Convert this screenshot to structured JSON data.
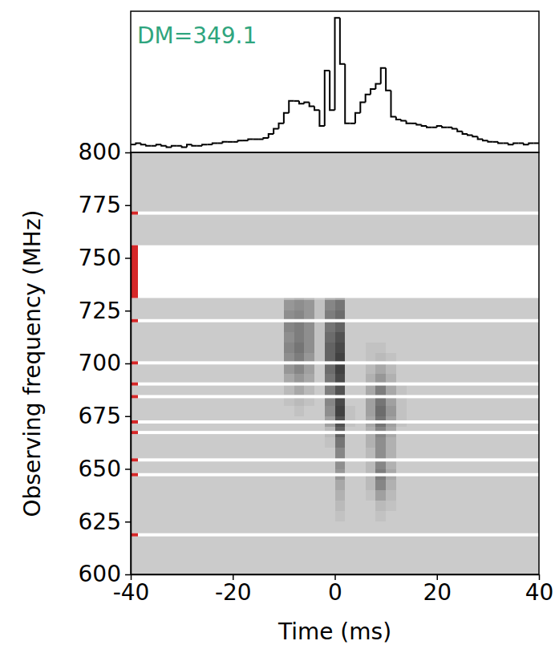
{
  "chart_data": {
    "type": "heatmap",
    "annotation": "DM=349.1",
    "x_label": "Time (ms)",
    "y_label": "Observing frequency (MHz)",
    "xlim": [
      -40,
      40
    ],
    "xticks": [
      -40,
      -20,
      0,
      20,
      40
    ],
    "ylim": [
      600,
      800
    ],
    "yticks": [
      600,
      625,
      650,
      675,
      700,
      725,
      750,
      775,
      800
    ],
    "cells": {
      "x_edges": [
        -12,
        -10,
        -8,
        -6,
        -4,
        -2,
        0,
        2,
        4,
        6,
        8,
        10,
        12,
        14
      ],
      "y_edges": [
        625,
        630,
        635,
        640,
        645,
        650,
        655,
        660,
        665,
        670,
        675,
        680,
        685,
        690,
        695,
        700,
        705,
        710,
        715,
        720,
        725,
        730,
        735
      ],
      "values": [
        [
          0,
          0,
          0,
          0,
          0,
          0,
          0.05,
          0,
          0,
          0,
          0.05,
          0,
          0
        ],
        [
          0,
          0,
          0,
          0,
          0,
          0,
          0.1,
          0,
          0,
          0,
          0.1,
          0.05,
          0
        ],
        [
          0,
          0,
          0,
          0,
          0,
          0,
          0.15,
          0,
          0,
          0.05,
          0.25,
          0.1,
          0
        ],
        [
          0,
          0,
          0,
          0,
          0,
          0,
          0.2,
          0,
          0,
          0.1,
          0.4,
          0.15,
          0
        ],
        [
          0,
          0,
          0,
          0,
          0,
          0,
          0.3,
          0,
          0,
          0.1,
          0.45,
          0.2,
          0
        ],
        [
          0,
          0,
          0,
          0,
          0,
          0,
          0.35,
          0,
          0,
          0.1,
          0.4,
          0.15,
          0
        ],
        [
          0,
          0,
          0,
          0,
          0,
          0,
          0.4,
          0,
          0,
          0.1,
          0.35,
          0.15,
          0
        ],
        [
          0,
          0,
          0,
          0,
          0,
          0.05,
          0.5,
          0,
          0,
          0.15,
          0.35,
          0.15,
          0
        ],
        [
          0,
          0,
          0,
          0,
          0,
          0.1,
          0.6,
          0,
          0,
          0.15,
          0.4,
          0.2,
          0
        ],
        [
          0,
          0,
          0,
          0,
          0,
          0.25,
          0.7,
          0.05,
          0,
          0.2,
          0.5,
          0.25,
          0.05
        ],
        [
          0,
          0,
          0.05,
          0,
          0,
          0.35,
          0.8,
          0.05,
          0,
          0.25,
          0.55,
          0.3,
          0.05
        ],
        [
          0,
          0.05,
          0.1,
          0.05,
          0,
          0.4,
          0.75,
          0,
          0,
          0.25,
          0.5,
          0.25,
          0.05
        ],
        [
          0,
          0.1,
          0.2,
          0.1,
          0,
          0.45,
          0.7,
          0,
          0,
          0.2,
          0.45,
          0.2,
          0.05
        ],
        [
          0,
          0.2,
          0.3,
          0.2,
          0,
          0.5,
          0.75,
          0,
          0,
          0.15,
          0.3,
          0.15,
          0
        ],
        [
          0,
          0.3,
          0.4,
          0.25,
          0,
          0.55,
          0.8,
          0,
          0,
          0.1,
          0.2,
          0.1,
          0
        ],
        [
          0,
          0.35,
          0.45,
          0.3,
          0.05,
          0.6,
          0.8,
          0,
          0,
          0.05,
          0.1,
          0.05,
          0
        ],
        [
          0,
          0.4,
          0.5,
          0.35,
          0.05,
          0.6,
          0.75,
          0,
          0,
          0.05,
          0.05,
          0,
          0
        ],
        [
          0,
          0.35,
          0.45,
          0.35,
          0.05,
          0.55,
          0.7,
          0,
          0,
          0,
          0,
          0,
          0
        ],
        [
          0,
          0.4,
          0.45,
          0.35,
          0.05,
          0.5,
          0.6,
          0,
          0,
          0,
          0,
          0,
          0
        ],
        [
          0,
          0.35,
          0.4,
          0.3,
          0.05,
          0.45,
          0.55,
          0,
          0,
          0,
          0,
          0,
          0
        ],
        [
          0,
          0.3,
          0.35,
          0.3,
          0.05,
          0.4,
          0.5,
          0,
          0,
          0,
          0,
          0,
          0
        ],
        [
          0,
          0.1,
          0.15,
          0.1,
          0,
          0.15,
          0.2,
          0,
          0,
          0,
          0,
          0,
          0
        ]
      ],
      "zlim": [
        0,
        1
      ]
    },
    "masked": [
      [
        618,
        619.5
      ],
      [
        646.5,
        648
      ],
      [
        653.5,
        655
      ],
      [
        666.5,
        668
      ],
      [
        671.5,
        673
      ],
      [
        683.5,
        685
      ],
      [
        689.5,
        691
      ],
      [
        699.5,
        701
      ],
      [
        719.5,
        721
      ],
      [
        731,
        756
      ],
      [
        770.5,
        772
      ]
    ],
    "profile": {
      "bins": [
        -40,
        -39,
        -38,
        -37,
        -36,
        -35,
        -34,
        -33,
        -32,
        -31,
        -30,
        -29,
        -28,
        -27,
        -26,
        -25,
        -24,
        -23,
        -22,
        -21,
        -20,
        -19,
        -18,
        -17,
        -16,
        -15,
        -14,
        -13,
        -12,
        -11,
        -10,
        -9,
        -8,
        -7,
        -6,
        -5,
        -4,
        -3,
        -2,
        -1,
        0,
        1,
        2,
        3,
        4,
        5,
        6,
        7,
        8,
        9,
        10,
        11,
        12,
        13,
        14,
        15,
        16,
        17,
        18,
        19,
        20,
        21,
        22,
        23,
        24,
        25,
        26,
        27,
        28,
        29,
        30,
        31,
        32,
        33,
        34,
        35,
        36,
        37,
        38,
        39,
        40
      ],
      "values": [
        0.04,
        0.05,
        0.04,
        0.03,
        0.03,
        0.04,
        0.03,
        0.02,
        0.03,
        0.03,
        0.02,
        0.04,
        0.03,
        0.03,
        0.04,
        0.04,
        0.05,
        0.05,
        0.06,
        0.06,
        0.06,
        0.07,
        0.07,
        0.08,
        0.08,
        0.08,
        0.09,
        0.12,
        0.16,
        0.2,
        0.28,
        0.37,
        0.37,
        0.35,
        0.36,
        0.33,
        0.3,
        0.18,
        0.6,
        0.3,
        1.0,
        0.65,
        0.2,
        0.2,
        0.28,
        0.36,
        0.42,
        0.46,
        0.5,
        0.62,
        0.45,
        0.25,
        0.23,
        0.22,
        0.2,
        0.2,
        0.19,
        0.18,
        0.17,
        0.17,
        0.18,
        0.17,
        0.17,
        0.16,
        0.14,
        0.12,
        0.11,
        0.1,
        0.08,
        0.07,
        0.06,
        0.06,
        0.05,
        0.05,
        0.04,
        0.05,
        0.05,
        0.04,
        0.05,
        0.05
      ],
      "ylim": [
        -0.02,
        1.05
      ]
    }
  }
}
